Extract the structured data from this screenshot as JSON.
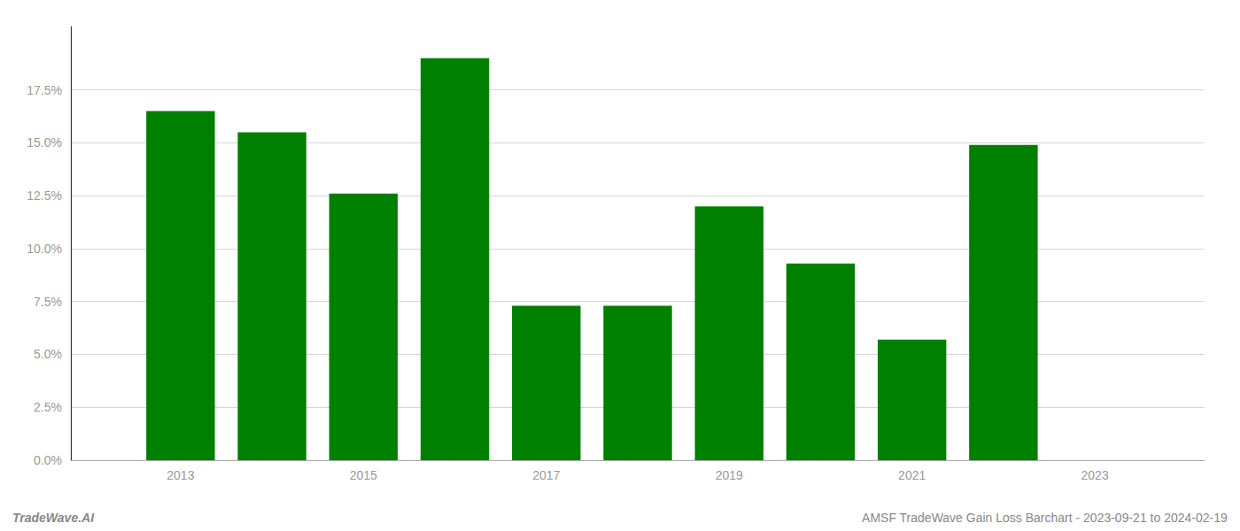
{
  "chart_data": {
    "type": "bar",
    "x": [
      2013,
      2014,
      2015,
      2016,
      2017,
      2018,
      2019,
      2020,
      2021,
      2022
    ],
    "values": [
      0.165,
      0.155,
      0.126,
      0.19,
      0.073,
      0.073,
      0.12,
      0.093,
      0.057,
      0.149
    ],
    "color": "#008000",
    "xlim": [
      2011.8,
      2024.2
    ],
    "xticks": [
      2013,
      2015,
      2017,
      2019,
      2021,
      2023
    ],
    "ylim": [
      0,
      0.205
    ],
    "yticks": [
      {
        "value": 0.0,
        "label": "0.0%"
      },
      {
        "value": 0.025,
        "label": "2.5%"
      },
      {
        "value": 0.05,
        "label": "5.0%"
      },
      {
        "value": 0.075,
        "label": "7.5%"
      },
      {
        "value": 0.1,
        "label": "10.0%"
      },
      {
        "value": 0.125,
        "label": "12.5%"
      },
      {
        "value": 0.15,
        "label": "15.0%"
      },
      {
        "value": 0.175,
        "label": "17.5%"
      }
    ],
    "grid": true,
    "annotations": [
      "TradeWave.AI",
      "AMSF TradeWave Gain Loss Barchart - 2023-09-21 to 2024-02-19"
    ]
  }
}
